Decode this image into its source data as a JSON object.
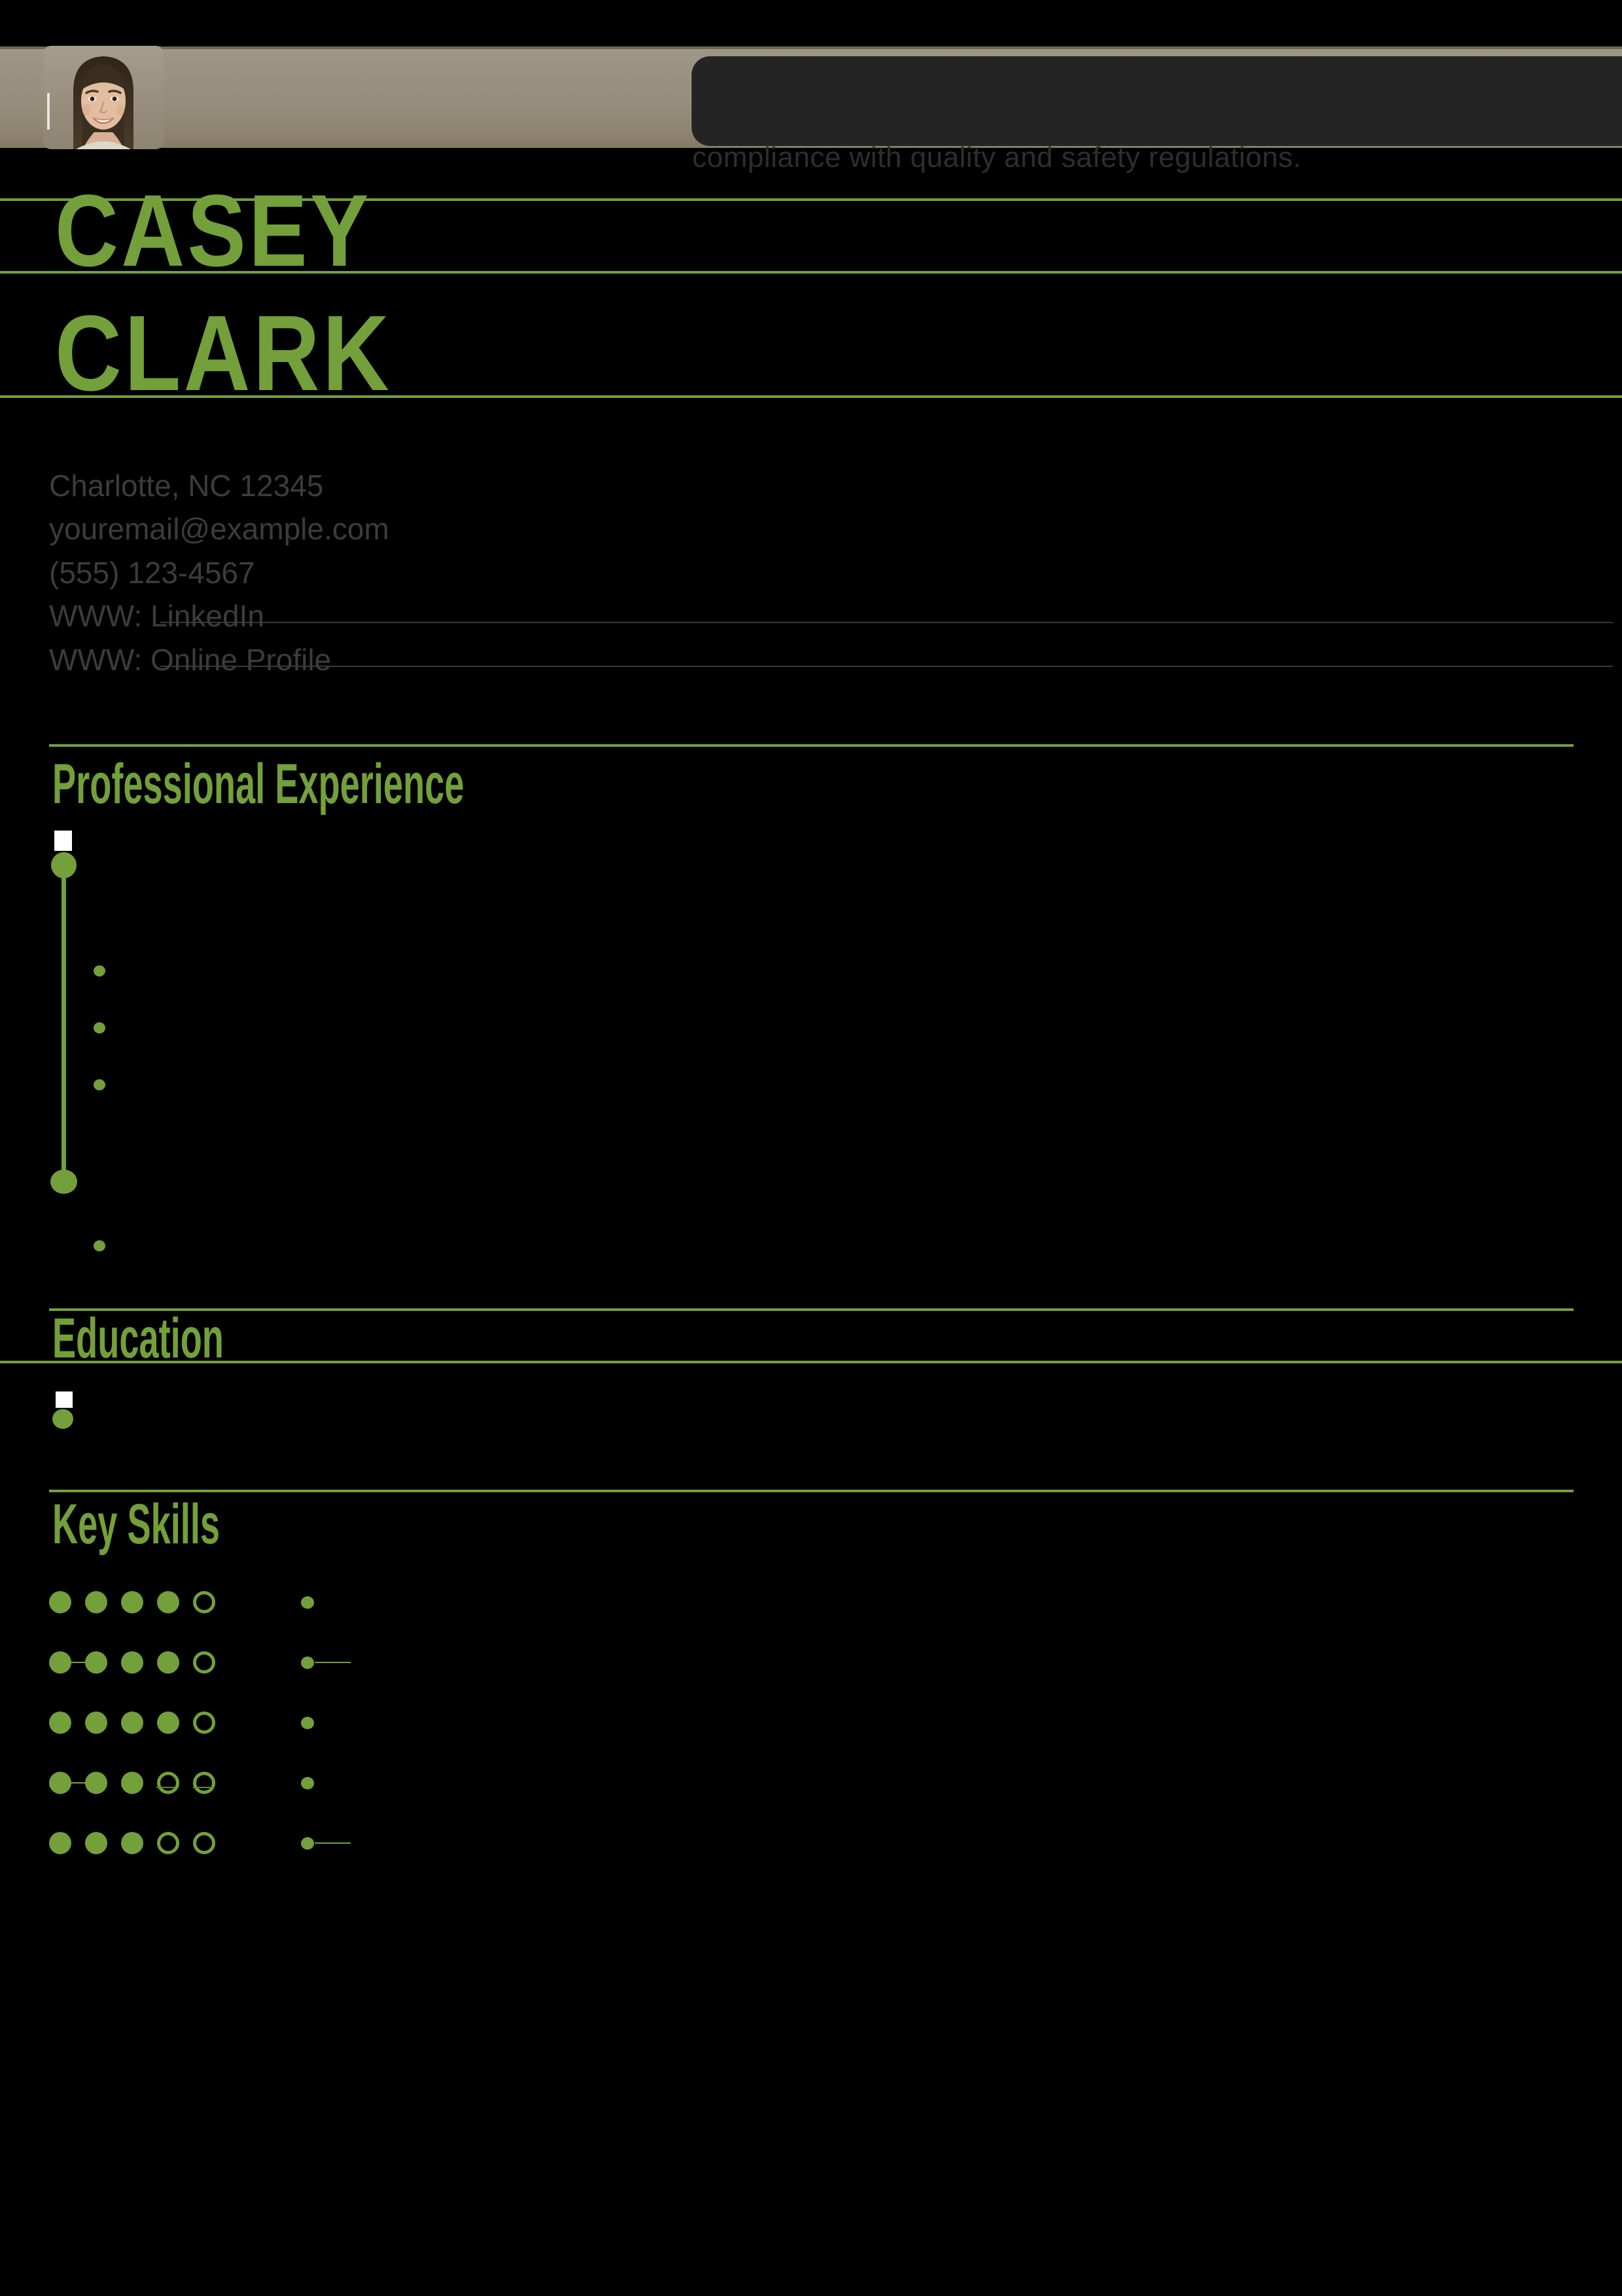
{
  "page": {
    "background": "#000000",
    "accent_green": "#73a03a"
  },
  "header": {
    "photo_icon": "woman-portrait-photo",
    "summary_overflow_line": "compliance with quality and safety regulations."
  },
  "name": {
    "first": "CASEY",
    "last": "CLARK"
  },
  "contact": {
    "location": "Charlotte, NC 12345",
    "email": "youremail@example.com",
    "phone": "(555) 123-4567",
    "website_1": "WWW: LinkedIn",
    "website_2": "WWW: Online Profile"
  },
  "sections": {
    "experience": {
      "title": "Professional Experience"
    },
    "education": {
      "title": "Education"
    },
    "skills": {
      "title": "Key Skills",
      "rating_scale": 5,
      "ratings": [
        {
          "filled": 4,
          "total": 5,
          "connector": false,
          "strike": false,
          "right_line": false
        },
        {
          "filled": 4,
          "total": 5,
          "connector": true,
          "strike": false,
          "right_line": true
        },
        {
          "filled": 4,
          "total": 5,
          "connector": false,
          "strike": false,
          "right_line": false
        },
        {
          "filled": 3,
          "total": 5,
          "connector": true,
          "strike": true,
          "right_line": false
        },
        {
          "filled": 3,
          "total": 5,
          "connector": false,
          "strike": false,
          "right_line": true
        }
      ]
    }
  }
}
